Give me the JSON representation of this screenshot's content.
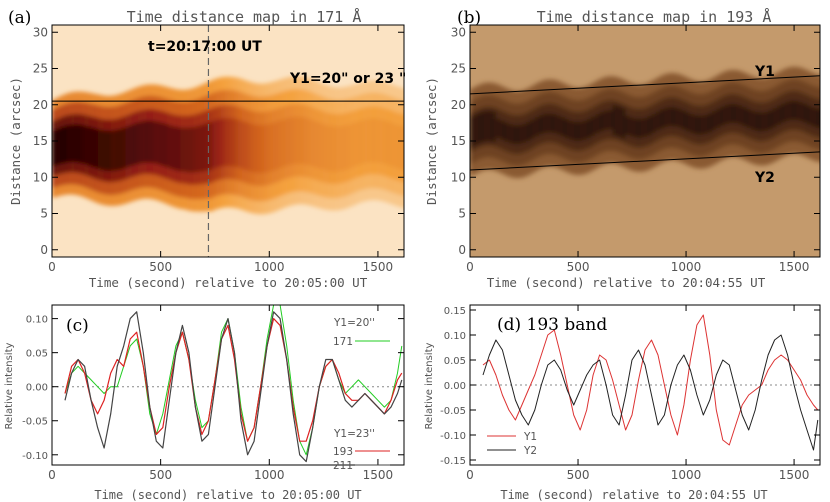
{
  "panels": {
    "a": {
      "tag": "(a)",
      "title": "Time distance map in 171 Å",
      "xlabel": "Time (second) relative to 20:05:00 UT",
      "ylabel": "Distance (arcsec)",
      "ann_time": "t=20:17:00 UT",
      "ann_y": "Y1=20\" or 23 \""
    },
    "b": {
      "tag": "(b)",
      "title": "Time distance map in 193 Å",
      "xlabel": "Time (second) relative to 20:04:55 UT",
      "ylabel": "Distance (arcsec)",
      "ann_y1": "Y1",
      "ann_y2": "Y2"
    },
    "c": {
      "tag": "(c)",
      "xlabel": "Time (second) relative to 20:05:00 UT",
      "ylabel": "Relative intensity",
      "legend_y1": "Y1=20''",
      "legend_y2": "Y1=23''",
      "leg171": "171",
      "leg193": "193",
      "leg211": "211"
    },
    "d": {
      "tag": "(d) 193 band",
      "xlabel": "Time (second) relative to 20:04:55 UT",
      "ylabel": "Relative intensity",
      "legY1": "Y1",
      "legY2": "Y2"
    }
  },
  "colors": {
    "c171": "#22cc22",
    "c193": "#dd2222",
    "c211": "#444444",
    "dY1": "#dd3333",
    "dY2": "#222222",
    "bg171": "#fbe3c3",
    "bg193": "#c49a6c"
  },
  "chart_data": [
    {
      "type": "heatmap",
      "title": "Time distance map in 171 Å",
      "xlabel": "Time (second) relative to 20:05:00 UT",
      "ylabel": "Distance (arcsec)",
      "xlim": [
        0,
        1620
      ],
      "ylim": [
        -1,
        31
      ],
      "xticks": [
        0,
        500,
        1000,
        1500
      ],
      "yticks": [
        0,
        5,
        10,
        15,
        20,
        25,
        30
      ],
      "markers": {
        "vertical_line_x": 720,
        "horizontal_line_y": 20.5
      },
      "band": {
        "x": [
          0,
          200,
          400,
          600,
          720,
          850,
          1000,
          1200,
          1400,
          1620
        ],
        "center": [
          14,
          14.2,
          14.3,
          14.4,
          14,
          14.5,
          14.5,
          14.5,
          14.5,
          14.5
        ],
        "half_width": [
          4.5,
          5,
          5.2,
          5.5,
          6,
          6,
          6,
          5.8,
          5.5,
          5.5
        ],
        "darkness": [
          1.0,
          0.95,
          0.9,
          0.85,
          0.8,
          0.6,
          0.45,
          0.35,
          0.3,
          0.3
        ]
      }
    },
    {
      "type": "heatmap",
      "title": "Time distance map in 193 Å",
      "xlabel": "Time (second) relative to 20:04:55 UT",
      "ylabel": "Distance (arcsec)",
      "xlim": [
        0,
        1620
      ],
      "ylim": [
        -1,
        31
      ],
      "xticks": [
        0,
        500,
        1000,
        1500
      ],
      "yticks": [
        0,
        5,
        10,
        15,
        20,
        25,
        30
      ],
      "lines": [
        {
          "name": "Y1",
          "x": [
            0,
            1620
          ],
          "y": [
            21.5,
            24
          ]
        },
        {
          "name": "Y2",
          "x": [
            0,
            1620
          ],
          "y": [
            11,
            13.5
          ]
        }
      ]
    },
    {
      "type": "line",
      "xlabel": "Time (second) relative to 20:05:00 UT",
      "ylabel": "Relative intensity",
      "xlim": [
        0,
        1620
      ],
      "ylim": [
        -0.115,
        0.12
      ],
      "xticks": [
        0,
        500,
        1000,
        1500
      ],
      "yticks": [
        -0.1,
        -0.05,
        0.0,
        0.05,
        0.1
      ],
      "series": [
        {
          "name": "171",
          "x": [
            60,
            90,
            120,
            150,
            180,
            210,
            240,
            270,
            300,
            330,
            360,
            390,
            420,
            450,
            480,
            510,
            540,
            570,
            600,
            630,
            660,
            690,
            720,
            750,
            780,
            810,
            840,
            870,
            900,
            930,
            960,
            990,
            1020,
            1050,
            1080,
            1110,
            1140,
            1170,
            1200,
            1230,
            1260,
            1290,
            1320,
            1350,
            1380,
            1410,
            1440,
            1470,
            1500,
            1530,
            1560,
            1590,
            1610
          ],
          "y": [
            -0.01,
            0.02,
            0.03,
            0.02,
            0.01,
            0.0,
            -0.01,
            0.0,
            0.0,
            0.03,
            0.06,
            0.07,
            0.03,
            -0.04,
            -0.07,
            -0.04,
            0.01,
            0.06,
            0.08,
            0.04,
            -0.02,
            -0.06,
            -0.05,
            0.01,
            0.08,
            0.1,
            0.05,
            -0.03,
            -0.08,
            -0.06,
            0.0,
            0.07,
            0.12,
            0.12,
            0.06,
            -0.02,
            -0.08,
            -0.1,
            -0.06,
            0.0,
            0.03,
            0.04,
            0.01,
            -0.01,
            0.0,
            0.01,
            0.0,
            -0.01,
            -0.02,
            -0.03,
            -0.02,
            0.02,
            0.06
          ]
        },
        {
          "name": "193",
          "x": [
            60,
            90,
            120,
            150,
            180,
            210,
            240,
            270,
            300,
            330,
            360,
            390,
            420,
            450,
            480,
            510,
            540,
            570,
            600,
            630,
            660,
            690,
            720,
            750,
            780,
            810,
            840,
            870,
            900,
            930,
            960,
            990,
            1020,
            1050,
            1080,
            1110,
            1140,
            1170,
            1200,
            1230,
            1260,
            1290,
            1320,
            1350,
            1380,
            1410,
            1440,
            1470,
            1500,
            1530,
            1560,
            1590,
            1610
          ],
          "y": [
            -0.01,
            0.03,
            0.04,
            0.02,
            -0.02,
            -0.04,
            -0.02,
            0.02,
            0.04,
            0.03,
            0.07,
            0.08,
            0.03,
            -0.03,
            -0.07,
            -0.06,
            0.0,
            0.05,
            0.08,
            0.04,
            -0.03,
            -0.07,
            -0.05,
            0.01,
            0.07,
            0.09,
            0.04,
            -0.04,
            -0.08,
            -0.06,
            0.0,
            0.06,
            0.1,
            0.09,
            0.04,
            -0.03,
            -0.08,
            -0.08,
            -0.05,
            0.0,
            0.03,
            0.04,
            0.02,
            -0.01,
            -0.02,
            -0.02,
            -0.01,
            -0.02,
            -0.03,
            -0.04,
            -0.02,
            0.01,
            0.02
          ]
        },
        {
          "name": "211",
          "x": [
            60,
            90,
            120,
            150,
            180,
            210,
            240,
            270,
            300,
            330,
            360,
            390,
            420,
            450,
            480,
            510,
            540,
            570,
            600,
            630,
            660,
            690,
            720,
            750,
            780,
            810,
            840,
            870,
            900,
            930,
            960,
            990,
            1020,
            1050,
            1080,
            1110,
            1140,
            1170,
            1200,
            1230,
            1260,
            1290,
            1320,
            1350,
            1380,
            1410,
            1440,
            1470,
            1500,
            1530,
            1560,
            1590,
            1610
          ],
          "y": [
            -0.02,
            0.02,
            0.04,
            0.03,
            -0.02,
            -0.06,
            -0.09,
            -0.04,
            0.03,
            0.06,
            0.1,
            0.11,
            0.05,
            -0.03,
            -0.08,
            -0.09,
            -0.02,
            0.05,
            0.09,
            0.05,
            -0.03,
            -0.08,
            -0.07,
            0.0,
            0.07,
            0.1,
            0.05,
            -0.05,
            -0.1,
            -0.08,
            -0.01,
            0.06,
            0.11,
            0.1,
            0.04,
            -0.04,
            -0.1,
            -0.11,
            -0.06,
            0.0,
            0.04,
            0.04,
            0.01,
            -0.02,
            -0.03,
            -0.02,
            -0.01,
            -0.02,
            -0.03,
            -0.04,
            -0.03,
            -0.01,
            0.01
          ]
        }
      ]
    },
    {
      "type": "line",
      "xlabel": "Time (second) relative to 20:04:55 UT",
      "ylabel": "Relative intensity",
      "xlim": [
        0,
        1620
      ],
      "ylim": [
        -0.16,
        0.16
      ],
      "xticks": [
        0,
        500,
        1000,
        1500
      ],
      "yticks": [
        -0.15,
        -0.1,
        -0.05,
        0.0,
        0.05,
        0.1,
        0.15
      ],
      "series": [
        {
          "name": "Y1",
          "x": [
            60,
            90,
            120,
            150,
            180,
            210,
            240,
            270,
            300,
            330,
            360,
            390,
            420,
            450,
            480,
            510,
            540,
            570,
            600,
            630,
            660,
            690,
            720,
            750,
            780,
            810,
            840,
            870,
            900,
            930,
            960,
            990,
            1020,
            1050,
            1080,
            1110,
            1140,
            1170,
            1200,
            1230,
            1260,
            1290,
            1320,
            1350,
            1380,
            1410,
            1440,
            1470,
            1500,
            1530,
            1560,
            1590,
            1610
          ],
          "y": [
            0.04,
            0.05,
            0.02,
            -0.02,
            -0.05,
            -0.07,
            -0.04,
            -0.01,
            0.02,
            0.06,
            0.1,
            0.11,
            0.06,
            0.0,
            -0.06,
            -0.09,
            -0.05,
            0.02,
            0.06,
            0.05,
            0.01,
            -0.04,
            -0.09,
            -0.06,
            0.01,
            0.07,
            0.09,
            0.06,
            0.0,
            -0.06,
            -0.1,
            -0.04,
            0.05,
            0.12,
            0.14,
            0.06,
            -0.05,
            -0.11,
            -0.12,
            -0.08,
            -0.04,
            -0.02,
            -0.01,
            0.0,
            0.03,
            0.05,
            0.06,
            0.05,
            0.03,
            0.01,
            -0.02,
            -0.04,
            -0.05
          ]
        },
        {
          "name": "Y2",
          "x": [
            60,
            90,
            120,
            150,
            180,
            210,
            240,
            270,
            300,
            330,
            360,
            390,
            420,
            450,
            480,
            510,
            540,
            570,
            600,
            630,
            660,
            690,
            720,
            750,
            780,
            810,
            840,
            870,
            900,
            930,
            960,
            990,
            1020,
            1050,
            1080,
            1110,
            1140,
            1170,
            1200,
            1230,
            1260,
            1290,
            1320,
            1350,
            1380,
            1410,
            1440,
            1470,
            1500,
            1530,
            1560,
            1590,
            1610
          ],
          "y": [
            0.02,
            0.06,
            0.09,
            0.07,
            0.02,
            -0.03,
            -0.06,
            -0.08,
            -0.05,
            0.0,
            0.04,
            0.05,
            0.03,
            -0.01,
            -0.04,
            -0.01,
            0.02,
            0.04,
            0.05,
            0.0,
            -0.06,
            -0.08,
            -0.02,
            0.05,
            0.07,
            0.04,
            -0.02,
            -0.08,
            -0.06,
            0.0,
            0.04,
            0.06,
            0.03,
            -0.02,
            -0.06,
            -0.03,
            0.02,
            0.05,
            0.04,
            -0.01,
            -0.06,
            -0.09,
            -0.05,
            0.01,
            0.06,
            0.09,
            0.1,
            0.06,
            0.0,
            -0.05,
            -0.09,
            -0.13,
            -0.07
          ]
        }
      ]
    }
  ]
}
